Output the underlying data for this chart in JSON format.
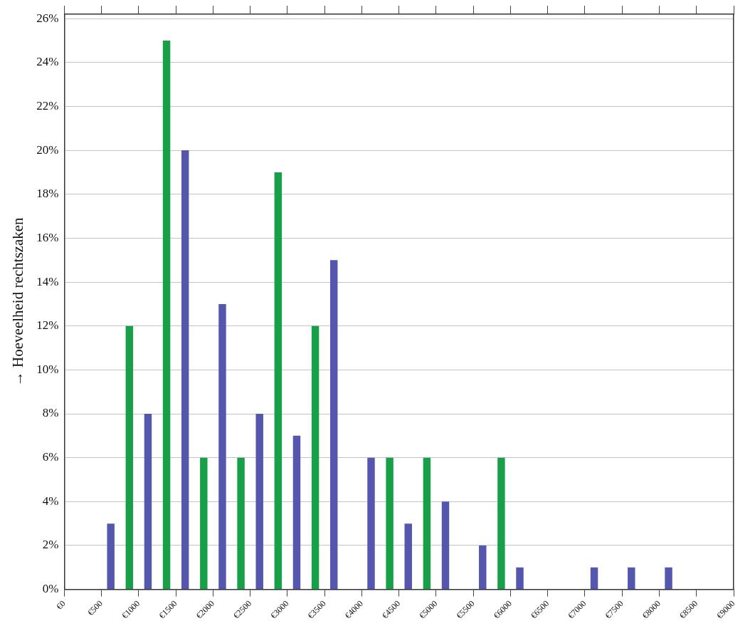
{
  "chart_data": {
    "type": "bar",
    "ylabel": "→ Hoeveelheid rechtszaken",
    "categories": [
      "€0",
      "€500",
      "€1000",
      "€1500",
      "€2000",
      "€2500",
      "€3000",
      "€3500",
      "€4000",
      "€4500",
      "€5000",
      "€5500",
      "€6000",
      "€6500",
      "€7000",
      "€7500",
      "€8000",
      "€8500",
      "€9000"
    ],
    "series": [
      {
        "color": "#17a048",
        "values": [
          0,
          0,
          12,
          25,
          6,
          6,
          19,
          12,
          0,
          6,
          6,
          0,
          6,
          0,
          0,
          0,
          0,
          0,
          0
        ]
      },
      {
        "color": "#5457ad",
        "values": [
          0,
          3,
          8,
          20,
          13,
          8,
          7,
          15,
          6,
          3,
          4,
          2,
          1,
          0,
          1,
          1,
          1,
          0,
          0
        ]
      }
    ],
    "ylim": [
      0,
      26.2
    ],
    "yticks": [
      {
        "value": 0,
        "label": "0%"
      },
      {
        "value": 2,
        "label": "2%"
      },
      {
        "value": 4,
        "label": "4%"
      },
      {
        "value": 6,
        "label": "6%"
      },
      {
        "value": 8,
        "label": "8%"
      },
      {
        "value": 10,
        "label": "10%"
      },
      {
        "value": 12,
        "label": "12%"
      },
      {
        "value": 14,
        "label": "14%"
      },
      {
        "value": 16,
        "label": "16%"
      },
      {
        "value": 18,
        "label": "18%"
      },
      {
        "value": 20,
        "label": "20%"
      },
      {
        "value": 22,
        "label": "22%"
      },
      {
        "value": 24,
        "label": "24%"
      },
      {
        "value": 26,
        "label": "26%"
      }
    ],
    "grid": "y",
    "legend": false
  }
}
